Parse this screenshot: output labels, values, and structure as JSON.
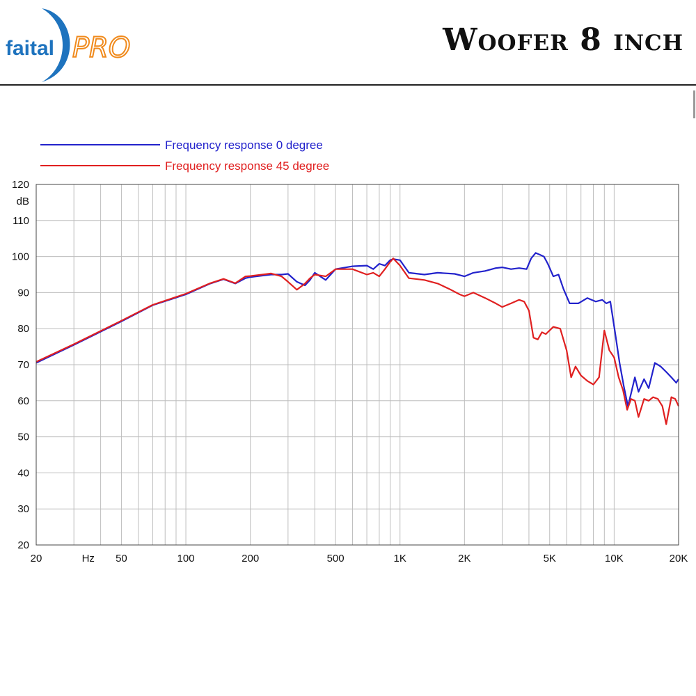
{
  "header": {
    "title": "Woofer 8 inch",
    "logo": {
      "text_left": "faital",
      "text_right": "PRO",
      "color_blue": "#1e73be",
      "color_orange": "#f08a1c"
    }
  },
  "chart_data": {
    "type": "line",
    "title": "",
    "xlabel": "Hz",
    "ylabel": "dB",
    "x_scale": "log",
    "xlim": [
      20,
      20000
    ],
    "ylim": [
      20,
      120
    ],
    "grid": true,
    "legend_position": "top-left",
    "x_ticks": [
      {
        "value": 20,
        "label": "20"
      },
      {
        "value": 35,
        "label": "Hz"
      },
      {
        "value": 50,
        "label": "50"
      },
      {
        "value": 100,
        "label": "100"
      },
      {
        "value": 200,
        "label": "200"
      },
      {
        "value": 500,
        "label": "500"
      },
      {
        "value": 1000,
        "label": "1K"
      },
      {
        "value": 2000,
        "label": "2K"
      },
      {
        "value": 5000,
        "label": "5K"
      },
      {
        "value": 10000,
        "label": "10K"
      },
      {
        "value": 20000,
        "label": "20K"
      }
    ],
    "y_ticks": [
      {
        "value": 20,
        "label": "20"
      },
      {
        "value": 30,
        "label": "30"
      },
      {
        "value": 40,
        "label": "40"
      },
      {
        "value": 50,
        "label": "50"
      },
      {
        "value": 60,
        "label": "60"
      },
      {
        "value": 70,
        "label": "70"
      },
      {
        "value": 80,
        "label": "80"
      },
      {
        "value": 90,
        "label": "90"
      },
      {
        "value": 100,
        "label": "100"
      },
      {
        "value": 110,
        "label": "110"
      },
      {
        "value": 120,
        "label": "120"
      }
    ],
    "series": [
      {
        "name": "Frequency response 0 degree",
        "color": "#2222cc",
        "x": [
          20,
          30,
          50,
          70,
          100,
          130,
          150,
          170,
          190,
          200,
          250,
          280,
          300,
          330,
          360,
          380,
          400,
          450,
          500,
          600,
          700,
          750,
          800,
          850,
          900,
          930,
          1000,
          1100,
          1300,
          1500,
          1800,
          2000,
          2200,
          2500,
          2800,
          3000,
          3300,
          3600,
          3900,
          4100,
          4300,
          4500,
          4700,
          4900,
          5200,
          5500,
          5800,
          6200,
          6800,
          7500,
          8200,
          8800,
          9200,
          9600,
          10100,
          10600,
          11100,
          11600,
          12000,
          12500,
          13000,
          13800,
          14500,
          15500,
          16500,
          17500,
          18500,
          19500,
          20000
        ],
        "y": [
          70.5,
          75.5,
          82.0,
          86.5,
          89.5,
          92.5,
          93.7,
          92.5,
          94.0,
          94.3,
          95.0,
          95.0,
          95.2,
          93.0,
          92.0,
          93.5,
          95.5,
          93.5,
          96.5,
          97.3,
          97.5,
          96.5,
          98.0,
          97.5,
          99.0,
          99.3,
          99.0,
          95.5,
          95.0,
          95.5,
          95.2,
          94.5,
          95.5,
          96.0,
          96.8,
          97.0,
          96.5,
          96.8,
          96.5,
          99.5,
          101.0,
          100.5,
          100.0,
          98.0,
          94.5,
          95.0,
          91.0,
          87.0,
          87.0,
          88.5,
          87.5,
          88.0,
          87.0,
          87.5,
          79.0,
          70.5,
          64.0,
          58.5,
          62.0,
          66.5,
          62.5,
          66.0,
          63.5,
          70.5,
          69.5,
          68.0,
          66.5,
          65.0,
          66.0
        ]
      },
      {
        "name": "Frequency response 45 degree",
        "color": "#e02020",
        "x": [
          20,
          30,
          50,
          70,
          100,
          130,
          150,
          170,
          190,
          200,
          250,
          280,
          300,
          330,
          360,
          380,
          400,
          450,
          500,
          600,
          700,
          750,
          800,
          850,
          900,
          930,
          1000,
          1100,
          1300,
          1500,
          1700,
          1900,
          2000,
          2200,
          2500,
          2800,
          3000,
          3300,
          3600,
          3800,
          4000,
          4200,
          4400,
          4600,
          4800,
          5200,
          5600,
          6000,
          6300,
          6600,
          7000,
          7500,
          8000,
          8500,
          9000,
          9500,
          10000,
          10500,
          11000,
          11500,
          12000,
          12500,
          13000,
          13800,
          14500,
          15200,
          16000,
          16800,
          17500,
          18500,
          19300,
          20000
        ],
        "y": [
          70.8,
          75.7,
          82.2,
          86.6,
          89.7,
          92.6,
          93.8,
          92.6,
          94.5,
          94.6,
          95.3,
          94.5,
          93.0,
          90.8,
          92.5,
          94.0,
          95.0,
          94.5,
          96.5,
          96.5,
          95.0,
          95.5,
          94.5,
          96.5,
          98.5,
          99.5,
          97.5,
          94.0,
          93.5,
          92.5,
          91.0,
          89.5,
          89.0,
          90.0,
          88.5,
          87.0,
          86.0,
          87.0,
          88.0,
          87.5,
          85.0,
          77.5,
          77.0,
          79.0,
          78.5,
          80.5,
          80.0,
          74.0,
          66.5,
          69.5,
          67.0,
          65.5,
          64.5,
          66.5,
          79.5,
          74.0,
          72.0,
          66.5,
          63.0,
          57.5,
          60.5,
          60.0,
          55.5,
          60.5,
          60.0,
          61.0,
          60.5,
          58.5,
          53.5,
          61.0,
          60.5,
          58.5
        ]
      }
    ]
  }
}
